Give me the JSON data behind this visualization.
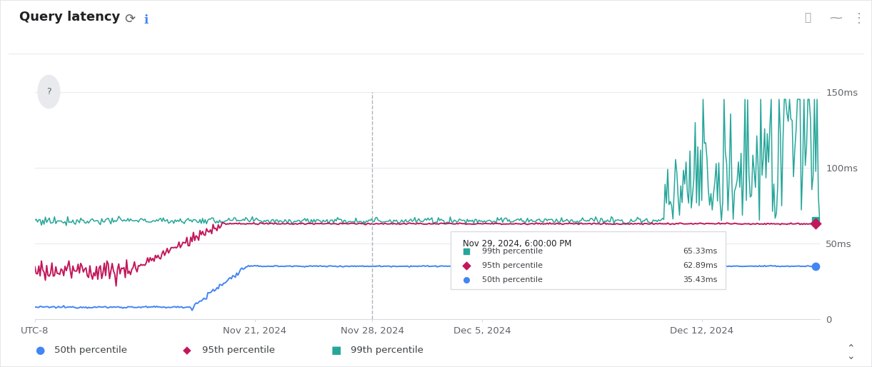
{
  "title": "Query latency",
  "background_color": "#f8f9fa",
  "plot_bg_color": "#ffffff",
  "outer_bg": "#ffffff",
  "grid_color": "#e8eaed",
  "ylim": [
    0,
    150
  ],
  "yticks": [
    0,
    50,
    100,
    150
  ],
  "ytick_labels": [
    "0",
    "50ms",
    "100ms",
    "150ms"
  ],
  "x_tick_positions": [
    0,
    28,
    43,
    57,
    85
  ],
  "x_tick_labels": [
    "UTC-8",
    "Nov 21, 2024",
    "Nov 28, 2024",
    "Dec 5, 2024",
    "Dec 12, 2024"
  ],
  "vline_x": 43,
  "series_50th": {
    "color": "#4285f4",
    "label": "50th percentile",
    "marker": "o",
    "marker_color": "#4285f4"
  },
  "series_95th": {
    "color": "#c2185b",
    "label": "95th percentile",
    "marker": "D",
    "marker_color": "#c2185b"
  },
  "series_99th": {
    "color": "#26a69a",
    "label": "99th percentile",
    "marker": "s",
    "marker_color": "#26a69a"
  },
  "tooltip_title": "Nov 29, 2024, 6:00:00 PM",
  "tooltip_99": "65.33ms",
  "tooltip_95": "62.89ms",
  "tooltip_50": "35.43ms",
  "p50_start": 8,
  "p50_end": 35,
  "p50_rise_start": 20,
  "p50_rise_end": 27,
  "p95_start": 32,
  "p95_end": 63,
  "p95_rise_start": 12,
  "p95_rise_end": 24,
  "p99_base": 65,
  "p99_spike_start": 80,
  "p99_spike_max": 130
}
